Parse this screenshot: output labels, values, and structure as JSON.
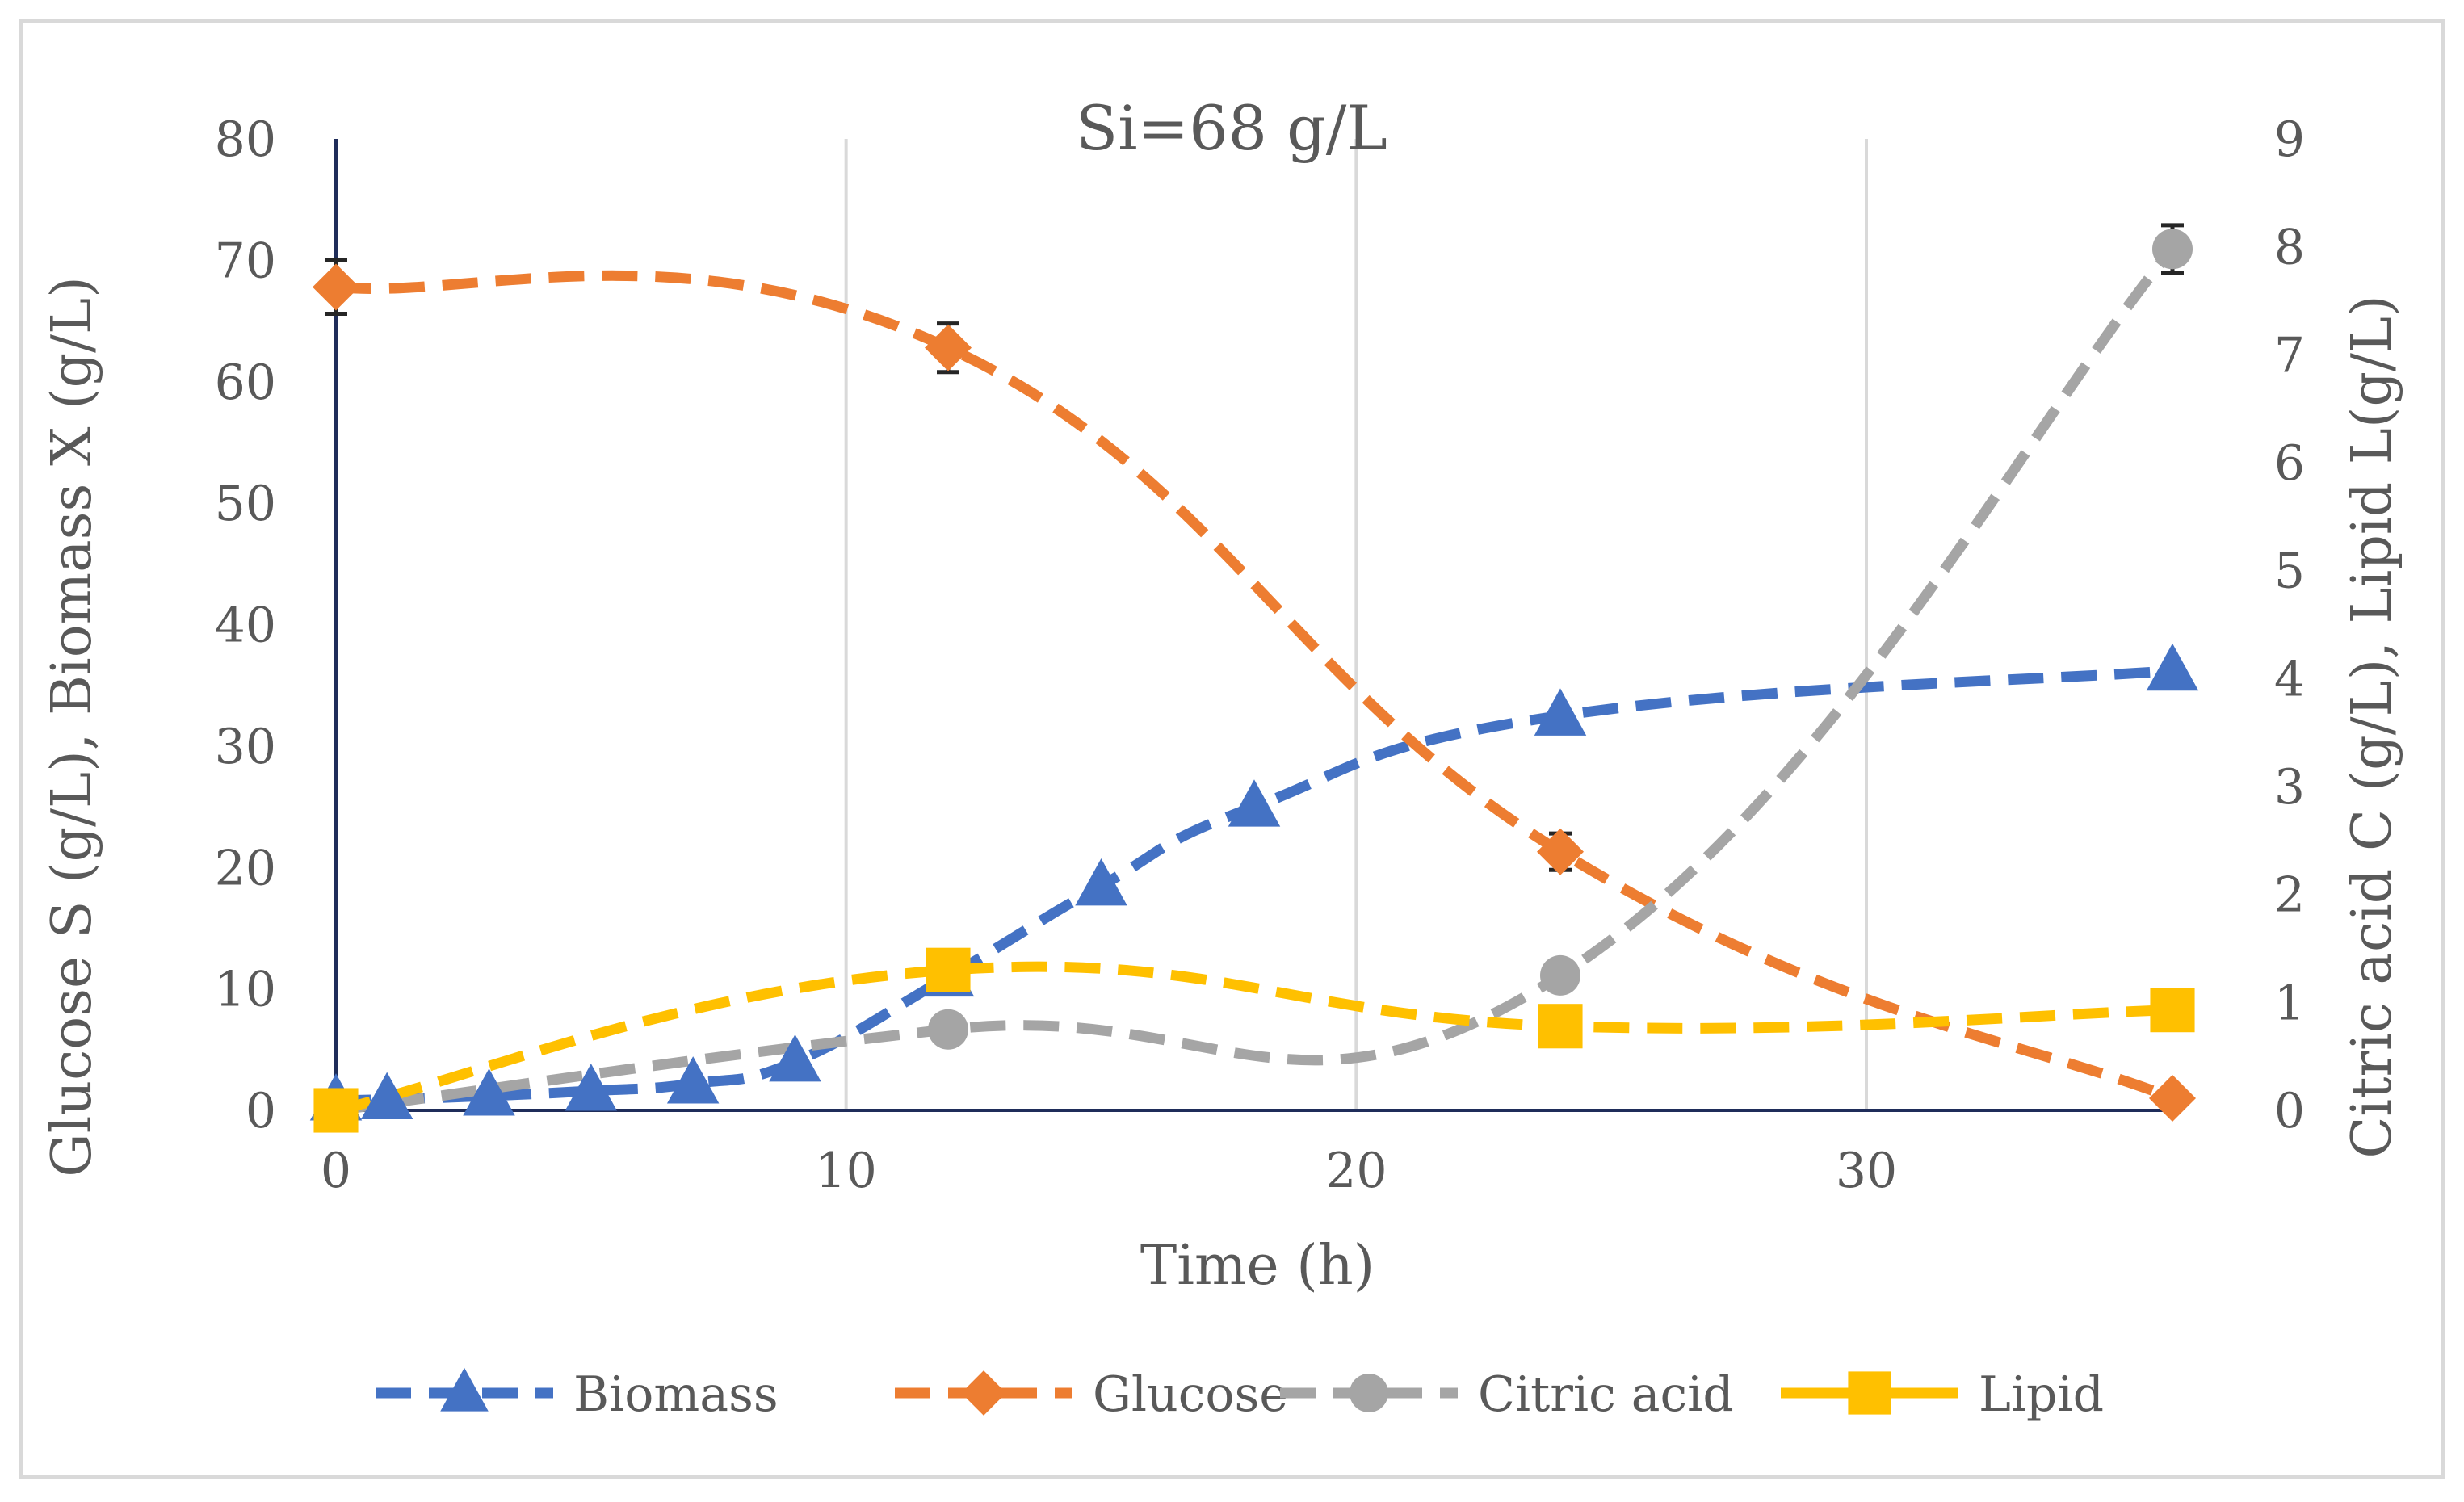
{
  "chart_data": {
    "type": "line",
    "title": "Si=68 g/L",
    "xlabel": "Time (h)",
    "ylabel_left": "Glucose S (g/L), Biomass X (g/L)",
    "ylabel_right": "Citric acid C (g/L), Lipid L(g/L)",
    "xlim": [
      0,
      36
    ],
    "x_ticks": [
      0,
      10,
      20,
      30
    ],
    "ylim_left": [
      0,
      80
    ],
    "y_ticks_left": [
      0,
      10,
      20,
      30,
      40,
      50,
      60,
      70,
      80
    ],
    "ylim_right": [
      0,
      9
    ],
    "y_ticks_right": [
      0,
      1,
      2,
      3,
      4,
      5,
      6,
      7,
      8,
      9
    ],
    "grid": "vertical",
    "legend_position": "bottom",
    "series": [
      {
        "name": "Biomass",
        "axis": "left",
        "marker": "triangle",
        "color": "#4472C4",
        "x": [
          0,
          1,
          3,
          5,
          7,
          9,
          12,
          15,
          18,
          24,
          36
        ],
        "y": [
          0.8,
          0.9,
          1.2,
          1.6,
          2.2,
          4,
          11,
          18.5,
          25,
          32.5,
          36.2
        ]
      },
      {
        "name": "Glucose",
        "axis": "left",
        "marker": "diamond",
        "color": "#ED7D31",
        "x": [
          0,
          12,
          24,
          36
        ],
        "y": [
          67.8,
          62.8,
          21.3,
          1
        ],
        "error": [
          2.2,
          2,
          1.5,
          0
        ]
      },
      {
        "name": "Citric acid",
        "axis": "right",
        "marker": "circle",
        "color": "#A5A5A5",
        "x": [
          0,
          12,
          24,
          36
        ],
        "y": [
          0,
          0.75,
          1.25,
          7.98
        ],
        "error": [
          0,
          0,
          0,
          0.22
        ]
      },
      {
        "name": "Lipid",
        "axis": "right",
        "marker": "square",
        "color": "#FFC000",
        "x": [
          0,
          12,
          24,
          36
        ],
        "y": [
          0,
          1.3,
          0.78,
          0.93
        ]
      }
    ]
  }
}
